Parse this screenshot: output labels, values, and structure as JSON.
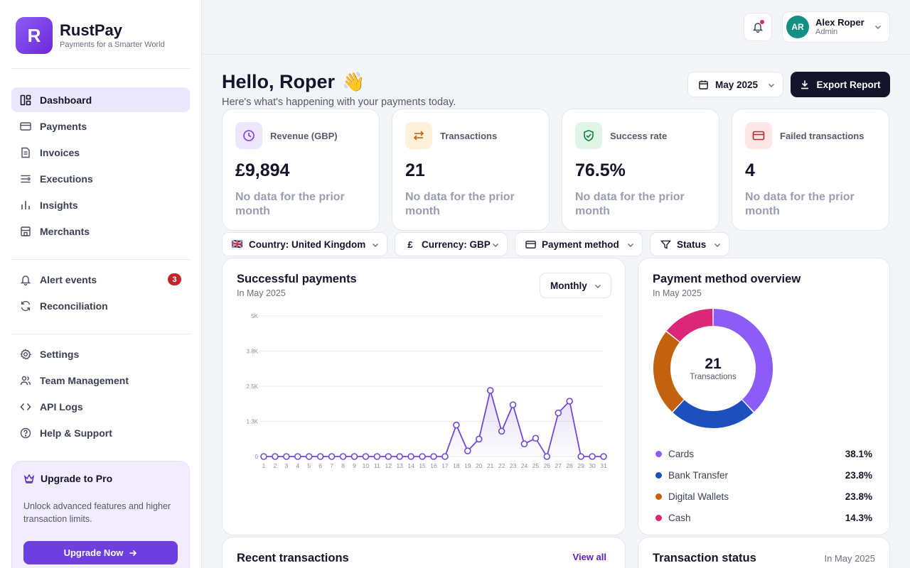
{
  "brand": {
    "logo_letter": "R",
    "name": "RustPay",
    "tagline": "Payments for a Smarter World"
  },
  "nav": {
    "main": [
      {
        "label": "Dashboard",
        "icon": "dashboard-icon",
        "active": true
      },
      {
        "label": "Payments",
        "icon": "credit-card-icon"
      },
      {
        "label": "Invoices",
        "icon": "invoice-icon"
      },
      {
        "label": "Executions",
        "icon": "executions-icon"
      },
      {
        "label": "Insights",
        "icon": "bar-chart-icon"
      },
      {
        "label": "Merchants",
        "icon": "store-icon"
      }
    ],
    "alerts": [
      {
        "label": "Alert events",
        "icon": "bell-icon",
        "badge": "3"
      },
      {
        "label": "Reconciliation",
        "icon": "refresh-icon"
      }
    ],
    "settings": [
      {
        "label": "Settings",
        "icon": "gear-icon"
      },
      {
        "label": "Team Management",
        "icon": "users-icon"
      },
      {
        "label": "API Logs",
        "icon": "code-icon"
      },
      {
        "label": "Help & Support",
        "icon": "help-icon"
      }
    ]
  },
  "upgrade": {
    "title": "Upgrade to Pro",
    "description": "Unlock advanced features and higher transaction limits.",
    "button": "Upgrade Now"
  },
  "topbar": {
    "user": {
      "initials": "AR",
      "name": "Alex Roper",
      "role": "Admin"
    }
  },
  "header": {
    "greeting": "Hello, Roper",
    "emoji": "👋",
    "subtitle": "Here's what's happening with your payments today.",
    "month": "May 2025",
    "export_label": "Export Report"
  },
  "kpis": [
    {
      "label": "Revenue (GBP)",
      "value": "£9,894",
      "note": "No data for the prior month",
      "icon": "clock-icon",
      "bg": "#ede7fd",
      "fg": "#7c3aed"
    },
    {
      "label": "Transactions",
      "value": "21",
      "note": "No data for the prior month",
      "icon": "swap-arrows-icon",
      "bg": "#fdf1dc",
      "fg": "#c2680c"
    },
    {
      "label": "Success rate",
      "value": "76.5%",
      "note": "No data for the prior month",
      "icon": "shield-check-icon",
      "bg": "#e1f4e8",
      "fg": "#15803d"
    },
    {
      "label": "Failed transactions",
      "value": "4",
      "note": "No data for the prior month",
      "icon": "credit-card-icon",
      "bg": "#fde6e6",
      "fg": "#c0262d"
    }
  ],
  "filters": [
    {
      "lead": "🇬🇧",
      "label": "Country: United Kingdom"
    },
    {
      "lead": "£",
      "label": "Currency: GBP"
    },
    {
      "lead": "card",
      "label": "Payment method"
    },
    {
      "lead": "funnel",
      "label": "Status"
    }
  ],
  "successful_payments": {
    "title": "Successful payments",
    "subtitle": "In May 2025",
    "period": "Monthly"
  },
  "chart_data": [
    {
      "type": "line",
      "title": "Successful payments",
      "subtitle": "In May 2025",
      "xlabel": "",
      "ylabel": "",
      "x": [
        1,
        2,
        3,
        4,
        5,
        6,
        7,
        8,
        9,
        10,
        11,
        12,
        13,
        14,
        15,
        16,
        17,
        18,
        19,
        20,
        21,
        22,
        23,
        24,
        25,
        26,
        27,
        28,
        29,
        30,
        31
      ],
      "values": [
        0,
        0,
        0,
        0,
        0,
        0,
        0,
        0,
        0,
        0,
        0,
        0,
        0,
        0,
        0,
        0,
        0,
        1120,
        200,
        620,
        2350,
        900,
        1840,
        450,
        650,
        0,
        1550,
        1970,
        0,
        0,
        0
      ],
      "yticks": [
        0,
        1250,
        2500,
        3750,
        5000
      ],
      "ytick_labels": [
        "0",
        "1.3K",
        "2.5K",
        "3.8K",
        "5K"
      ],
      "ylim": [
        0,
        5000
      ],
      "grid": true,
      "color": "#6d4ad8"
    },
    {
      "type": "pie",
      "title": "Payment method overview",
      "subtitle": "In May 2025",
      "center_value": "21",
      "center_label": "Transactions",
      "slices": [
        {
          "name": "Cards",
          "value": 38.1,
          "label": "38.1%",
          "color": "#8b5cf6"
        },
        {
          "name": "Bank Transfer",
          "value": 23.8,
          "label": "23.8%",
          "color": "#1d4fbf"
        },
        {
          "name": "Digital Wallets",
          "value": 23.8,
          "label": "23.8%",
          "color": "#c2620e"
        },
        {
          "name": "Cash",
          "value": 14.3,
          "label": "14.3%",
          "color": "#db2777"
        }
      ]
    }
  ],
  "recent_transactions": {
    "title": "Recent transactions",
    "link": "View all"
  },
  "transaction_status": {
    "title": "Transaction status",
    "period": "In May 2025"
  }
}
